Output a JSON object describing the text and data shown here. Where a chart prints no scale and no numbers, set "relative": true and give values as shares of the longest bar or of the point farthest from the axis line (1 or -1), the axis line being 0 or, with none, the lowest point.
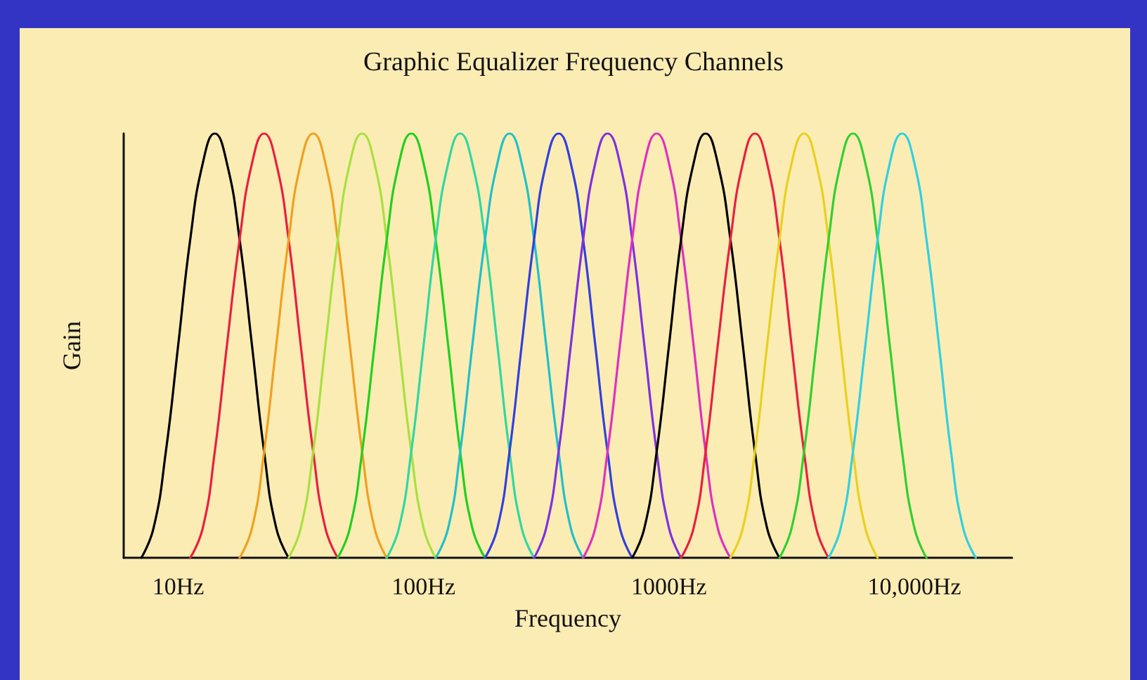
{
  "chart_data": {
    "type": "line",
    "title": "Graphic Equalizer Frequency Channels",
    "xlabel": "Frequency",
    "ylabel": "Gain",
    "relative": true,
    "log": "x",
    "grid": false,
    "marker": "none",
    "line_style": "solid",
    "xlim": [
      6,
      25000
    ],
    "xticks": [
      {
        "value": 10,
        "label": "10Hz"
      },
      {
        "value": 100,
        "label": "100Hz"
      },
      {
        "value": 1000,
        "label": "1000Hz"
      },
      {
        "value": 10000,
        "label": "10,000Hz"
      }
    ],
    "series": [
      {
        "color": "#000000",
        "x": [
          7.08,
          7.94,
          8.91,
          10,
          11.2,
          12.6,
          14.1,
          15.8,
          17.8,
          20,
          22.4,
          25.1,
          28.2
        ],
        "values": [
          0,
          0.07,
          0.25,
          0.5,
          0.75,
          0.93,
          1,
          0.93,
          0.75,
          0.5,
          0.25,
          0.07,
          0
        ]
      },
      {
        "color": "#e82040",
        "x": [
          11.2,
          12.6,
          14.1,
          15.8,
          17.8,
          20,
          22.4,
          25.1,
          28.2,
          31.6,
          35.5,
          39.8,
          44.7
        ],
        "values": [
          0,
          0.07,
          0.25,
          0.5,
          0.75,
          0.93,
          1,
          0.93,
          0.75,
          0.5,
          0.25,
          0.07,
          0
        ]
      },
      {
        "color": "#f0a020",
        "x": [
          17.8,
          20,
          22.4,
          25.1,
          28.2,
          31.6,
          35.5,
          39.8,
          44.7,
          50.1,
          56.2,
          63.1,
          70.8
        ],
        "values": [
          0,
          0.07,
          0.25,
          0.5,
          0.75,
          0.93,
          1,
          0.93,
          0.75,
          0.5,
          0.25,
          0.07,
          0
        ]
      },
      {
        "color": "#a8e040",
        "x": [
          28.2,
          31.6,
          35.5,
          39.8,
          44.7,
          50.1,
          56.2,
          63.1,
          70.8,
          79.4,
          89.1,
          100,
          112
        ],
        "values": [
          0,
          0.07,
          0.25,
          0.5,
          0.75,
          0.93,
          1,
          0.93,
          0.75,
          0.5,
          0.25,
          0.07,
          0
        ]
      },
      {
        "color": "#20d020",
        "x": [
          44.7,
          50.1,
          56.2,
          63.1,
          70.8,
          79.4,
          89.1,
          100,
          112,
          126,
          141,
          158,
          178
        ],
        "values": [
          0,
          0.07,
          0.25,
          0.5,
          0.75,
          0.93,
          1,
          0.93,
          0.75,
          0.5,
          0.25,
          0.07,
          0
        ]
      },
      {
        "color": "#30d8a0",
        "x": [
          70.8,
          79.4,
          89.1,
          100,
          112,
          126,
          141,
          158,
          178,
          200,
          224,
          251,
          282
        ],
        "values": [
          0,
          0.07,
          0.25,
          0.5,
          0.75,
          0.93,
          1,
          0.93,
          0.75,
          0.5,
          0.25,
          0.07,
          0
        ]
      },
      {
        "color": "#20c0c8",
        "x": [
          112,
          126,
          141,
          158,
          178,
          200,
          224,
          251,
          282,
          316,
          355,
          398,
          447
        ],
        "values": [
          0,
          0.07,
          0.25,
          0.5,
          0.75,
          0.93,
          1,
          0.93,
          0.75,
          0.5,
          0.25,
          0.07,
          0
        ]
      },
      {
        "color": "#3040e0",
        "x": [
          178,
          200,
          224,
          251,
          282,
          316,
          355,
          398,
          447,
          501,
          562,
          631,
          708
        ],
        "values": [
          0,
          0.07,
          0.25,
          0.5,
          0.75,
          0.93,
          1,
          0.93,
          0.75,
          0.5,
          0.25,
          0.07,
          0
        ]
      },
      {
        "color": "#8030e0",
        "x": [
          282,
          316,
          355,
          398,
          447,
          501,
          562,
          631,
          708,
          794,
          891,
          1000,
          1120
        ],
        "values": [
          0,
          0.07,
          0.25,
          0.5,
          0.75,
          0.93,
          1,
          0.93,
          0.75,
          0.5,
          0.25,
          0.07,
          0
        ]
      },
      {
        "color": "#e030c0",
        "x": [
          447,
          501,
          562,
          631,
          708,
          794,
          891,
          1000,
          1120,
          1260,
          1410,
          1580,
          1780
        ],
        "values": [
          0,
          0.07,
          0.25,
          0.5,
          0.75,
          0.93,
          1,
          0.93,
          0.75,
          0.5,
          0.25,
          0.07,
          0
        ]
      },
      {
        "color": "#000000",
        "x": [
          708,
          794,
          891,
          1000,
          1120,
          1260,
          1410,
          1580,
          1780,
          2000,
          2240,
          2510,
          2820
        ],
        "values": [
          0,
          0.07,
          0.25,
          0.5,
          0.75,
          0.93,
          1,
          0.93,
          0.75,
          0.5,
          0.25,
          0.07,
          0
        ]
      },
      {
        "color": "#e82040",
        "x": [
          1120,
          1260,
          1410,
          1580,
          1780,
          2000,
          2240,
          2510,
          2820,
          3160,
          3550,
          3980,
          4470
        ],
        "values": [
          0,
          0.07,
          0.25,
          0.5,
          0.75,
          0.93,
          1,
          0.93,
          0.75,
          0.5,
          0.25,
          0.07,
          0
        ]
      },
      {
        "color": "#e8d020",
        "x": [
          1780,
          2000,
          2240,
          2510,
          2820,
          3160,
          3550,
          3980,
          4470,
          5010,
          5620,
          6310,
          7080
        ],
        "values": [
          0,
          0.07,
          0.25,
          0.5,
          0.75,
          0.93,
          1,
          0.93,
          0.75,
          0.5,
          0.25,
          0.07,
          0
        ]
      },
      {
        "color": "#30d030",
        "x": [
          2820,
          3160,
          3550,
          3980,
          4470,
          5010,
          5620,
          6310,
          7080,
          7940,
          8910,
          10000,
          11200
        ],
        "values": [
          0,
          0.07,
          0.25,
          0.5,
          0.75,
          0.93,
          1,
          0.93,
          0.75,
          0.5,
          0.25,
          0.07,
          0
        ]
      },
      {
        "color": "#30d0e0",
        "x": [
          4470,
          5010,
          5620,
          6310,
          7080,
          7940,
          8910,
          10000,
          11200,
          12600,
          14100,
          15800,
          17800
        ],
        "values": [
          0,
          0.07,
          0.25,
          0.5,
          0.75,
          0.93,
          1,
          0.93,
          0.75,
          0.5,
          0.25,
          0.07,
          0
        ]
      }
    ]
  }
}
